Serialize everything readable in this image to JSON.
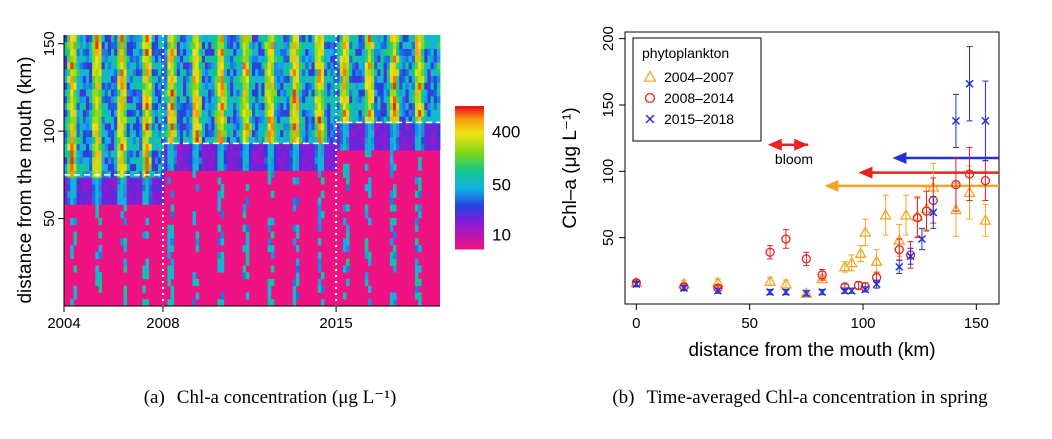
{
  "chart_data": [
    {
      "type": "heatmap",
      "xlabel": "",
      "ylabel": "distance from the mouth (km)",
      "x_ticks": [
        "2004",
        "2008",
        "2015"
      ],
      "y_ticks": [
        "50",
        "100",
        "150"
      ],
      "xlim": [
        2004,
        2019.2
      ],
      "ylim": [
        0,
        155
      ],
      "colorbar": {
        "ticks": [
          "10",
          "50",
          "400"
        ]
      },
      "regime_lines": [
        {
          "x_from": 2004,
          "x_to": 2008,
          "y": 75
        },
        {
          "x_from": 2008,
          "x_to": 2015,
          "y": 93
        },
        {
          "x_from": 2015,
          "x_to": 2019.2,
          "y": 105
        }
      ],
      "period_boundaries": [
        2008,
        2015
      ],
      "caption_tag": "(a)",
      "caption": "Chl-a concentration (μg L⁻¹)"
    },
    {
      "type": "scatter",
      "xlabel": "distance from the mouth (km)",
      "ylabel": "Chl–a (μg L⁻¹)",
      "xlim": [
        -5,
        160
      ],
      "ylim": [
        0,
        205
      ],
      "x_ticks": [
        "0",
        "50",
        "100",
        "150"
      ],
      "y_ticks": [
        "50",
        "100",
        "150",
        "200"
      ],
      "legend_title": "phytoplankton",
      "legend_position": "top-left",
      "annotation": "bloom",
      "bloom_arrow": {
        "from": 82,
        "to": 58,
        "y": 120
      },
      "series": [
        {
          "name": "2004–2007",
          "marker": "triangle",
          "color": "#f5a623",
          "points": [
            [
              0,
              16,
              2
            ],
            [
              21,
              15,
              3
            ],
            [
              36,
              16,
              3
            ],
            [
              59,
              17,
              3
            ],
            [
              66,
              15,
              3
            ],
            [
              75,
              8,
              2
            ],
            [
              82,
              19,
              3
            ],
            [
              92,
              28,
              4
            ],
            [
              95,
              31,
              6
            ],
            [
              99,
              38,
              6
            ],
            [
              101,
              54,
              10
            ],
            [
              106,
              32,
              9
            ],
            [
              110,
              67,
              15
            ],
            [
              116,
              48,
              12
            ],
            [
              119,
              67,
              15
            ],
            [
              124,
              66,
              15
            ],
            [
              128,
              72,
              16
            ],
            [
              131,
              88,
              18
            ],
            [
              141,
              71,
              20
            ],
            [
              147,
              84,
              20
            ],
            [
              154,
              63,
              12
            ]
          ],
          "arrow": {
            "from": 160,
            "to": 83,
            "y": 89
          }
        },
        {
          "name": "2008–2014",
          "marker": "circle",
          "color": "#e8221f",
          "points": [
            [
              0,
              16,
              2
            ],
            [
              21,
              13,
              2
            ],
            [
              36,
              12,
              2
            ],
            [
              59,
              39,
              5
            ],
            [
              66,
              49,
              7
            ],
            [
              75,
              34,
              5
            ],
            [
              82,
              22,
              4
            ],
            [
              92,
              13,
              2
            ],
            [
              98,
              14,
              3
            ],
            [
              101,
              13,
              3
            ],
            [
              106,
              20,
              4
            ],
            [
              116,
              41,
              8
            ],
            [
              121,
              37,
              10
            ],
            [
              124,
              65,
              15
            ],
            [
              128,
              70,
              15
            ],
            [
              131,
              78,
              17
            ],
            [
              141,
              90,
              20
            ],
            [
              147,
              98,
              20
            ],
            [
              154,
              93,
              15
            ]
          ],
          "arrow": {
            "from": 160,
            "to": 98,
            "y": 99
          }
        },
        {
          "name": "2015–2018",
          "marker": "cross",
          "color": "#2230d8",
          "points": [
            [
              0,
              15,
              2
            ],
            [
              21,
              12,
              2
            ],
            [
              36,
              10,
              2
            ],
            [
              59,
              9,
              2
            ],
            [
              66,
              9,
              2
            ],
            [
              75,
              8,
              2
            ],
            [
              82,
              9,
              2
            ],
            [
              92,
              10,
              2
            ],
            [
              95,
              10,
              2
            ],
            [
              101,
              11,
              2
            ],
            [
              106,
              15,
              3
            ],
            [
              116,
              28,
              5
            ],
            [
              121,
              36,
              6
            ],
            [
              126,
              49,
              8
            ],
            [
              131,
              69,
              12
            ],
            [
              141,
              138,
              20
            ],
            [
              147,
              166,
              28
            ],
            [
              154,
              138,
              30
            ]
          ],
          "arrow": {
            "from": 160,
            "to": 113,
            "y": 110
          }
        }
      ],
      "caption_tag": "(b)",
      "caption": "Time-averaged Chl-a concentration in spring"
    }
  ]
}
